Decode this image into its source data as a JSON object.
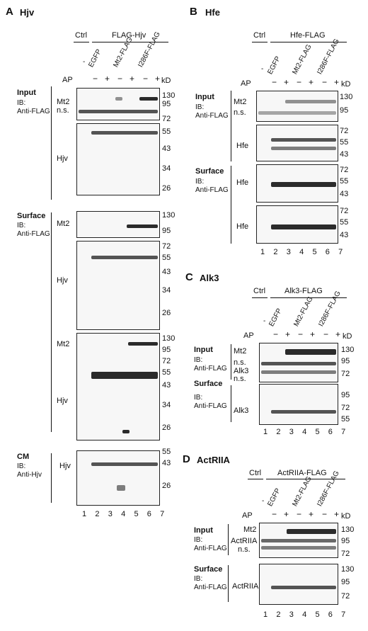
{
  "common": {
    "ctrl": "Ctrl",
    "dash": "-",
    "egfp": "EGFP",
    "mt2": "Mt2-FLAG",
    "i286f": "I286F-FLAG",
    "ap": "AP",
    "minus": "-",
    "plus": "+",
    "kd": "kD",
    "lanes": [
      "1",
      "2",
      "3",
      "4",
      "5",
      "6",
      "7"
    ]
  },
  "A": {
    "letter": "A",
    "title": "Hjv",
    "construct": "FLAG-Hjv",
    "input": "Input",
    "ib": "IB:",
    "anti_flag": "Anti-FLAG",
    "surface": "Surface",
    "cm": "CM",
    "anti_hjv": "Anti-Hjv",
    "mt2": "Mt2",
    "ns": "n.s.",
    "hjv": "Hjv",
    "mw1": [
      "130",
      "95",
      "72"
    ],
    "mw2": [
      "55",
      "43",
      "34",
      "26"
    ],
    "mw3": [
      "130",
      "95"
    ],
    "mw4": [
      "72",
      "55",
      "43",
      "34",
      "26"
    ],
    "mw5": [
      "130",
      "95",
      "72",
      "55",
      "43",
      "34",
      "26"
    ],
    "mw6": [
      "55",
      "43",
      "26"
    ]
  },
  "B": {
    "letter": "B",
    "title": "Hfe",
    "construct": "Hfe-FLAG",
    "input": "Input",
    "ib": "IB:",
    "anti_flag": "Anti-FLAG",
    "surface": "Surface",
    "mt2": "Mt2",
    "ns": "n.s.",
    "hfe": "Hfe",
    "mw1": [
      "130",
      "95"
    ],
    "mw2": [
      "72",
      "55",
      "43"
    ],
    "mw3": [
      "72",
      "55",
      "43"
    ],
    "mw4": [
      "72",
      "55",
      "43"
    ]
  },
  "C": {
    "letter": "C",
    "title": "Alk3",
    "construct": "Alk3-FLAG",
    "input": "Input",
    "ib": "IB:",
    "anti_flag": "Anti-FLAG",
    "surface": "Surface",
    "mt2": "Mt2",
    "ns": "n.s.",
    "alk3": "Alk3",
    "mw1": [
      "130",
      "95",
      "72"
    ],
    "mw2": [
      "95",
      "72",
      "55"
    ]
  },
  "D": {
    "letter": "D",
    "title": "ActRIIA",
    "construct": "ActRIIA-FLAG",
    "input": "Input",
    "ib": "IB:",
    "anti_flag": "Anti-FLAG",
    "surface": "Surface",
    "mt2": "Mt2",
    "ns": "n.s.",
    "actriia": "ActRIIA",
    "mw1": [
      "130",
      "95",
      "72"
    ],
    "mw2": [
      "130",
      "95",
      "72"
    ]
  }
}
